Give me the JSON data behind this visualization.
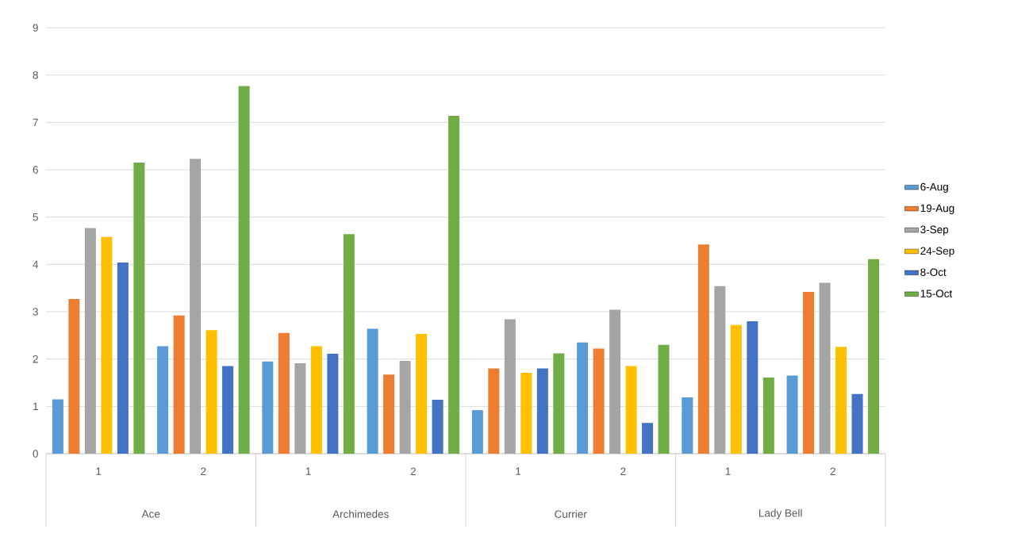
{
  "chart_data": {
    "type": "bar",
    "categories": [
      "1",
      "2",
      "1",
      "2",
      "1",
      "2",
      "1",
      "2"
    ],
    "annotations": [
      "Ace",
      "Archimedes",
      "Currier",
      "Lady Bell"
    ],
    "series": [
      {
        "name": "6-Aug",
        "color": "#5b9bd5",
        "values": [
          1.15,
          2.27,
          1.95,
          2.64,
          0.92,
          2.35,
          1.19,
          1.65
        ]
      },
      {
        "name": "19-Aug",
        "color": "#ed7d31",
        "values": [
          3.27,
          2.92,
          2.55,
          1.67,
          1.8,
          2.22,
          4.42,
          3.42
        ]
      },
      {
        "name": "3-Sep",
        "color": "#a5a5a5",
        "values": [
          4.77,
          6.23,
          1.91,
          1.96,
          2.84,
          3.04,
          3.54,
          3.61
        ]
      },
      {
        "name": "24-Sep",
        "color": "#ffc000",
        "values": [
          4.58,
          2.61,
          2.27,
          2.53,
          1.71,
          1.85,
          2.72,
          2.26
        ]
      },
      {
        "name": "8-Oct",
        "color": "#4472c4",
        "values": [
          4.04,
          1.85,
          2.11,
          1.14,
          1.8,
          0.65,
          2.8,
          1.26
        ]
      },
      {
        "name": "15-Oct",
        "color": "#70ad47",
        "values": [
          6.15,
          7.77,
          4.64,
          7.14,
          2.12,
          2.3,
          1.61,
          4.11
        ]
      }
    ],
    "ylim": [
      0,
      9
    ],
    "yticks": [
      0,
      1,
      2,
      3,
      4,
      5,
      6,
      7,
      8,
      9
    ],
    "grid": "y",
    "legend": "right"
  }
}
